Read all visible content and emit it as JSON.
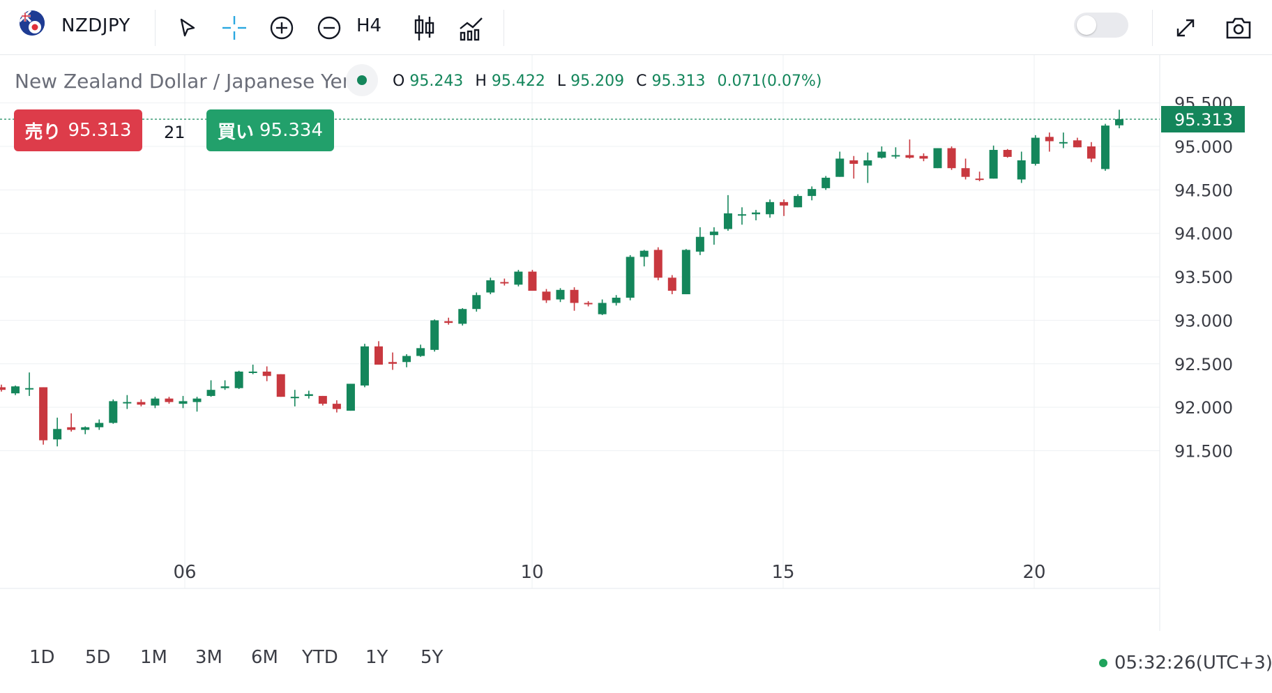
{
  "toolbar": {
    "symbol": "NZDJPY",
    "timeframe": "H4",
    "icons": [
      "flag-nz-jp-icon",
      "cursor-arrow-icon",
      "crosshair-icon",
      "zoom-in-icon",
      "zoom-out-icon",
      "candlestick-icon",
      "chart-type-icon",
      "fullscreen-icon",
      "camera-icon"
    ],
    "toggle_on": false
  },
  "legend": {
    "title": "New Zealand Dollar / Japanese Yen",
    "o_label": "O",
    "o": "95.243",
    "h_label": "H",
    "h": "95.422",
    "l_label": "L",
    "l": "95.209",
    "c_label": "C",
    "c": "95.313",
    "change": "0.071(0.07%)"
  },
  "trade": {
    "sell_label": "売り",
    "sell_price": "95.313",
    "spread": "21",
    "buy_label": "買い",
    "buy_price": "95.334"
  },
  "price_label": "95.313",
  "ranges": [
    "1D",
    "5D",
    "1M",
    "3M",
    "6M",
    "YTD",
    "1Y",
    "5Y"
  ],
  "clock": "05:32:26(UTC+3)",
  "colors": {
    "up": "#14865b",
    "down": "#c8383f",
    "accent_cross": "#2aa7e0"
  },
  "chart_data": {
    "type": "candlestick",
    "interval": "H4",
    "x_ticks": [
      "06",
      "10",
      "15",
      "20"
    ],
    "y_ticks": [
      "95.500",
      "95.000",
      "94.500",
      "94.000",
      "93.500",
      "93.000",
      "92.500",
      "92.000",
      "91.500"
    ],
    "ylim": [
      91.0,
      95.6
    ],
    "last_price": 95.313,
    "grid": true,
    "candles": [
      [
        92.23,
        92.26,
        92.18,
        92.2
      ],
      [
        92.16,
        92.25,
        92.14,
        92.24
      ],
      [
        92.22,
        92.4,
        92.13,
        92.22
      ],
      [
        92.23,
        92.23,
        91.57,
        91.62
      ],
      [
        91.63,
        91.88,
        91.55,
        91.75
      ],
      [
        91.77,
        91.93,
        91.72,
        91.74
      ],
      [
        91.74,
        91.78,
        91.69,
        91.77
      ],
      [
        91.77,
        91.86,
        91.74,
        91.82
      ],
      [
        91.82,
        92.09,
        91.81,
        92.07
      ],
      [
        92.05,
        92.14,
        91.98,
        92.06
      ],
      [
        92.06,
        92.09,
        92.01,
        92.03
      ],
      [
        92.02,
        92.12,
        91.99,
        92.1
      ],
      [
        92.1,
        92.12,
        92.04,
        92.06
      ],
      [
        92.04,
        92.13,
        91.99,
        92.07
      ],
      [
        92.06,
        92.12,
        91.95,
        92.1
      ],
      [
        92.13,
        92.31,
        92.12,
        92.2
      ],
      [
        92.22,
        92.31,
        92.2,
        92.24
      ],
      [
        92.22,
        92.42,
        92.21,
        92.41
      ],
      [
        92.4,
        92.49,
        92.38,
        92.41
      ],
      [
        92.41,
        92.47,
        92.3,
        92.36
      ],
      [
        92.38,
        92.38,
        92.12,
        92.12
      ],
      [
        92.12,
        92.2,
        92.01,
        92.12
      ],
      [
        92.13,
        92.19,
        92.1,
        92.15
      ],
      [
        92.13,
        92.13,
        92.02,
        92.04
      ],
      [
        92.04,
        92.08,
        91.94,
        91.98
      ],
      [
        91.96,
        92.27,
        91.96,
        92.27
      ],
      [
        92.25,
        92.73,
        92.23,
        92.7
      ],
      [
        92.7,
        92.76,
        92.49,
        92.49
      ],
      [
        92.52,
        92.63,
        92.43,
        92.5
      ],
      [
        92.52,
        92.61,
        92.46,
        92.59
      ],
      [
        92.59,
        92.72,
        92.58,
        92.68
      ],
      [
        92.66,
        93.01,
        92.64,
        93.0
      ],
      [
        92.99,
        93.03,
        92.95,
        92.97
      ],
      [
        92.96,
        93.14,
        92.94,
        93.13
      ],
      [
        93.13,
        93.32,
        93.1,
        93.29
      ],
      [
        93.32,
        93.49,
        93.3,
        93.46
      ],
      [
        93.44,
        93.48,
        93.4,
        93.43
      ],
      [
        93.41,
        93.58,
        93.39,
        93.56
      ],
      [
        93.56,
        93.58,
        93.34,
        93.34
      ],
      [
        93.33,
        93.36,
        93.2,
        93.23
      ],
      [
        93.24,
        93.37,
        93.21,
        93.35
      ],
      [
        93.35,
        93.38,
        93.11,
        93.2
      ],
      [
        93.2,
        93.22,
        93.16,
        93.19
      ],
      [
        93.07,
        93.24,
        93.06,
        93.2
      ],
      [
        93.2,
        93.29,
        93.17,
        93.26
      ],
      [
        93.26,
        93.75,
        93.23,
        93.73
      ],
      [
        93.73,
        93.81,
        93.62,
        93.8
      ],
      [
        93.81,
        93.84,
        93.46,
        93.49
      ],
      [
        93.49,
        93.52,
        93.3,
        93.34
      ],
      [
        93.3,
        93.82,
        93.3,
        93.81
      ],
      [
        93.79,
        94.07,
        93.75,
        93.96
      ],
      [
        93.98,
        94.07,
        93.87,
        94.02
      ],
      [
        94.05,
        94.44,
        94.03,
        94.23
      ],
      [
        94.22,
        94.3,
        94.1,
        94.22
      ],
      [
        94.22,
        94.27,
        94.15,
        94.24
      ],
      [
        94.22,
        94.39,
        94.18,
        94.36
      ],
      [
        94.36,
        94.39,
        94.2,
        94.32
      ],
      [
        94.3,
        94.45,
        94.3,
        94.43
      ],
      [
        94.43,
        94.54,
        94.38,
        94.51
      ],
      [
        94.52,
        94.66,
        94.5,
        94.64
      ],
      [
        94.65,
        94.94,
        94.65,
        94.86
      ],
      [
        94.84,
        94.89,
        94.63,
        94.8
      ],
      [
        94.78,
        94.93,
        94.58,
        94.84
      ],
      [
        94.87,
        95.0,
        94.86,
        94.94
      ],
      [
        94.9,
        94.99,
        94.86,
        94.9
      ],
      [
        94.9,
        95.08,
        94.86,
        94.87
      ],
      [
        94.89,
        94.92,
        94.83,
        94.86
      ],
      [
        94.75,
        94.98,
        94.75,
        94.98
      ],
      [
        94.98,
        95.0,
        94.73,
        94.75
      ],
      [
        94.75,
        94.86,
        94.62,
        94.65
      ],
      [
        94.63,
        94.71,
        94.6,
        94.62
      ],
      [
        94.63,
        95.01,
        94.63,
        94.96
      ],
      [
        94.96,
        94.97,
        94.87,
        94.88
      ],
      [
        94.62,
        94.94,
        94.58,
        94.84
      ],
      [
        94.8,
        95.13,
        94.78,
        95.1
      ],
      [
        95.11,
        95.16,
        94.94,
        95.06
      ],
      [
        95.05,
        95.16,
        94.98,
        95.05
      ],
      [
        95.07,
        95.1,
        94.99,
        94.99
      ],
      [
        95.0,
        95.05,
        94.82,
        94.86
      ],
      [
        94.74,
        95.26,
        94.72,
        95.24
      ],
      [
        95.243,
        95.422,
        95.209,
        95.313
      ]
    ]
  }
}
